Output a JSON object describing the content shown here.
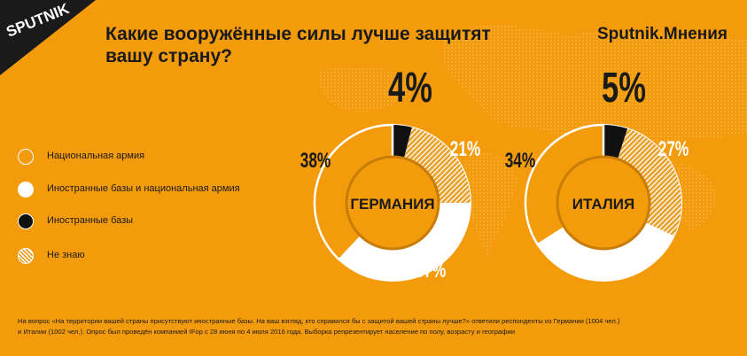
{
  "header": {
    "logo_text": "SPUTNIK",
    "title_line1": "Какие вооружённые силы лучше защитят",
    "title_line2": "вашу страну?",
    "brand": "Sputnik.Мнения"
  },
  "colors": {
    "background": "#f39b0b",
    "national_army": "#f39b0b",
    "foreign_and_national": "#ffffff",
    "foreign_bases": "#111111",
    "dont_know_hatch": "#e8a12a",
    "ring_border": "#ffffff",
    "center_fill": "#f39b0b",
    "center_ring": "#c77c05",
    "map_dots": "#f8b651"
  },
  "legend": [
    {
      "key": "national_army",
      "label": "Национальная армия",
      "swatch": "national_army"
    },
    {
      "key": "foreign_and_national",
      "label": "Иностранные базы и национальная армия",
      "swatch": "foreign_and_national"
    },
    {
      "key": "foreign_bases",
      "label": "Иностранные базы",
      "swatch": "foreign_bases"
    },
    {
      "key": "dont_know",
      "label": "Не знаю",
      "swatch": "hatch"
    }
  ],
  "chart_data": [
    {
      "type": "pie",
      "variant": "donut",
      "title": "ГЕРМАНИЯ",
      "categories": [
        "Иностранные базы",
        "Не знаю",
        "Иностранные базы и национальная армия",
        "Национальная армия"
      ],
      "values": [
        4,
        21,
        37,
        38
      ],
      "labels": [
        "4%",
        "21%",
        "37%",
        "38%"
      ]
    },
    {
      "type": "pie",
      "variant": "donut",
      "title": "ИТАЛИЯ",
      "categories": [
        "Иностранные базы",
        "Не знаю",
        "Иностранные базы и национальная армия",
        "Национальная армия"
      ],
      "values": [
        5,
        27,
        34,
        34
      ],
      "labels": [
        "5%",
        "27%",
        "34%",
        "34%"
      ]
    }
  ],
  "footnote": {
    "line1": "На вопрос «На территории вашей страны присутствуют иностранные базы. На ваш взгляд, кто справился бы с защитой вашей страны лучше?» ответили респонденты из Германии (1004 чел.)",
    "line2": "и Италии (1002 чел.). Опрос был проведён компанией IFop с 28 июня по 4 июля 2016 года. Выборка репрезентирует население по полу, возрасту и географии"
  }
}
